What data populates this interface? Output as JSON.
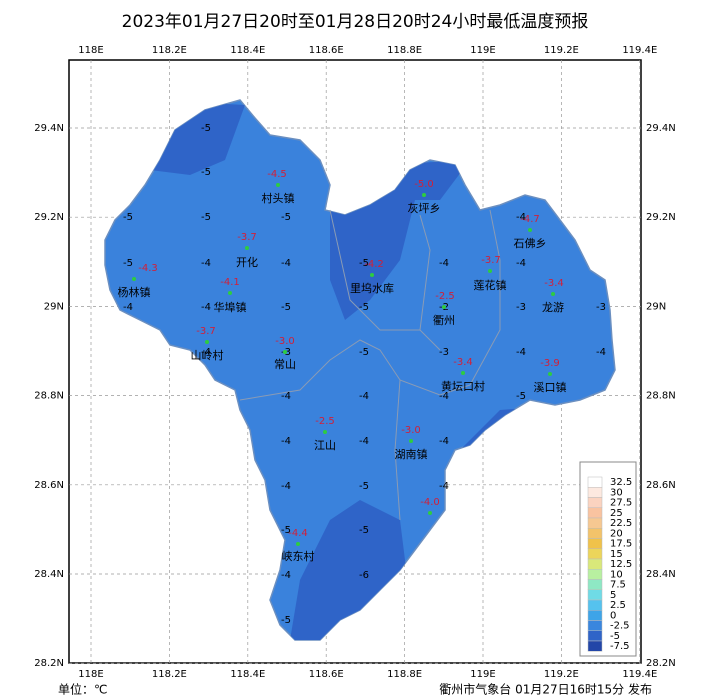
{
  "title": "2023年01月27日20时至01月28日20时24小时最低温度预报",
  "lon_ticks": [
    "118E",
    "118.2E",
    "118.4E",
    "118.6E",
    "118.8E",
    "119E",
    "119.2E",
    "119.4E"
  ],
  "lat_ticks": [
    "29.4N",
    "29.2N",
    "29N",
    "28.8N",
    "28.6N",
    "28.4N",
    "28.2N"
  ],
  "stations": [
    {
      "name": "杨林镇",
      "temp": "-4.3"
    },
    {
      "name": "村头镇",
      "temp": "-4.5"
    },
    {
      "name": "开化",
      "temp": "-3.7"
    },
    {
      "name": "华埠镇",
      "temp": "-4.1"
    },
    {
      "name": "山岭村",
      "temp": "-3.7"
    },
    {
      "name": "常山",
      "temp": "-3.0"
    },
    {
      "name": "江山",
      "temp": "-2.5"
    },
    {
      "name": "峡东村",
      "temp": "-4.4"
    },
    {
      "name": "里坞水库",
      "temp": "-4.2"
    },
    {
      "name": "灰坪乡",
      "temp": "-5.0"
    },
    {
      "name": "衢州",
      "temp": "-2.5"
    },
    {
      "name": "莲花镇",
      "temp": "-3.7"
    },
    {
      "name": "石佛乡",
      "temp": "-4.7"
    },
    {
      "name": "龙游",
      "temp": "-3.4"
    },
    {
      "name": "黄坛口村",
      "temp": "-3.4"
    },
    {
      "name": "溪口镇",
      "temp": "-3.9"
    },
    {
      "name": "湖南镇",
      "temp": "-3.0"
    },
    {
      "temp": "-4.0"
    }
  ],
  "isolines": [
    "-5",
    "-5",
    "-5",
    "-5",
    "-5",
    "-4",
    "-5",
    "-4",
    "-4",
    "-5",
    "-4",
    "-4",
    "-4",
    "-4",
    "-5",
    "-5",
    "-2",
    "-3",
    "-3",
    "-4",
    "-3",
    "-5",
    "-3",
    "-4",
    "-4",
    "-4",
    "-4",
    "-4",
    "-5",
    "-4",
    "-4",
    "-4",
    "-4",
    "-5",
    "-4",
    "-5",
    "-5",
    "-4",
    "-6",
    "-5"
  ],
  "legend": {
    "labels": [
      "32.5",
      "30",
      "27.5",
      "25",
      "22.5",
      "20",
      "17.5",
      "15",
      "12.5",
      "10",
      "7.5",
      "5",
      "2.5",
      "0",
      "-2.5",
      "-5",
      "-7.5"
    ],
    "colors": [
      "#ffffff",
      "#fde9e0",
      "#fbd3c0",
      "#f9c3a0",
      "#f6c891",
      "#f3c36a",
      "#f0c24a",
      "#ecd55a",
      "#d9e87a",
      "#b8f0a0",
      "#8ee8c4",
      "#6fdbe6",
      "#55c2ee",
      "#3ea4e8",
      "#3a86de",
      "#2f64c8",
      "#2346a8"
    ]
  },
  "unit": "单位：℃",
  "footer": "衢州市气象台 01月27日16时15分 发布"
}
